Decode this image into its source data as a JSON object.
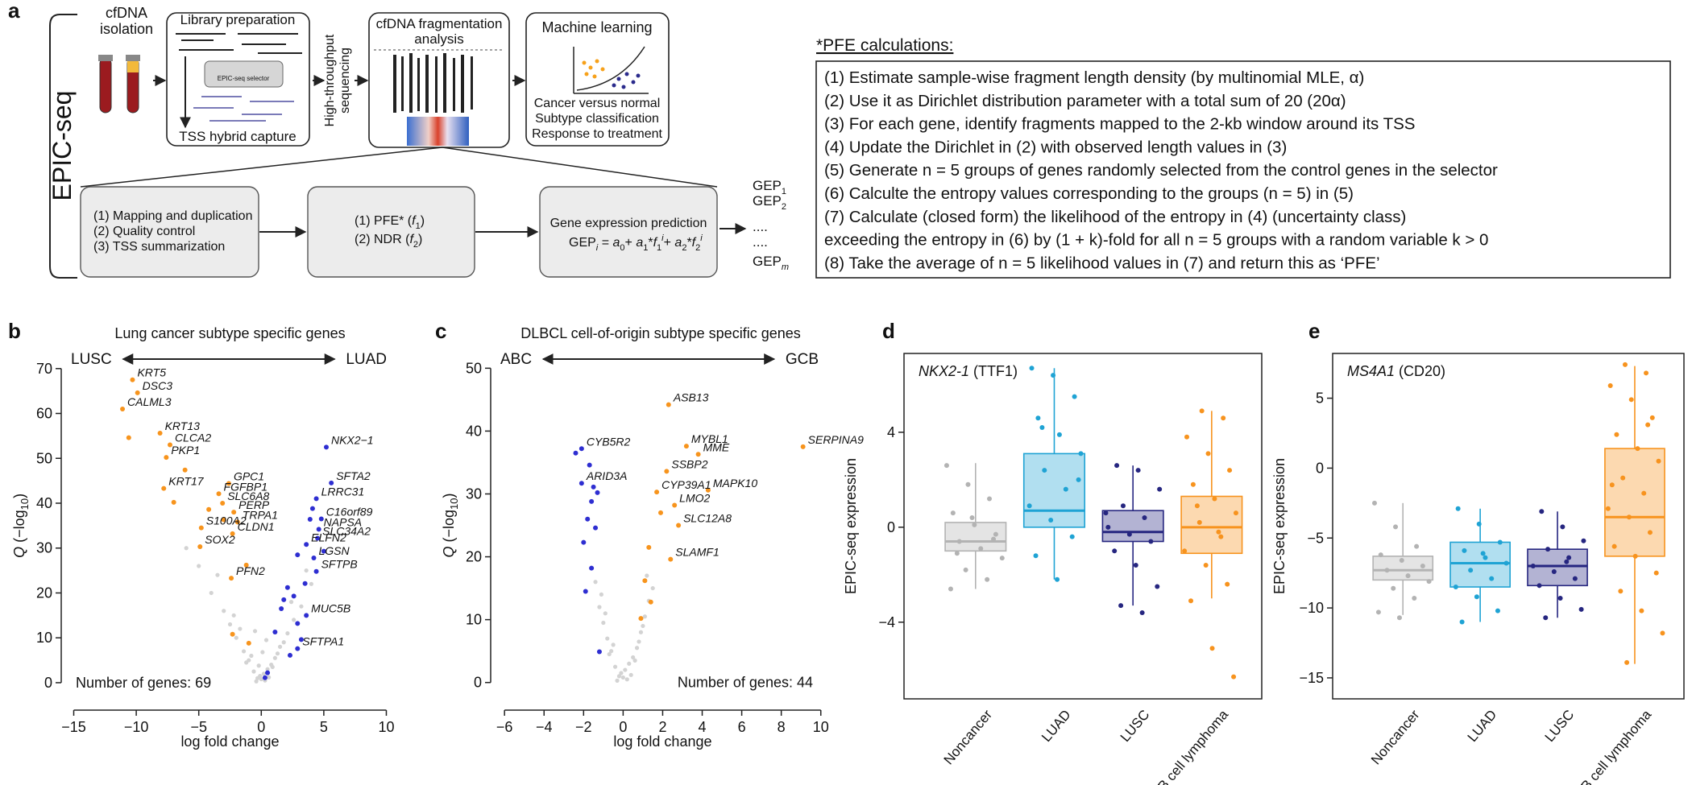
{
  "diagram": {
    "panel_label": "a",
    "side_label": "EPIC-seq",
    "isolation": [
      "cfDNA",
      "isolation"
    ],
    "library": {
      "title": "Library preparation",
      "selector": "EPIC-seq selector",
      "bottom": "TSS hybrid capture"
    },
    "sequencing": [
      "High-throughput",
      "sequencing"
    ],
    "fragmentation": [
      "cfDNA fragmentation",
      "analysis"
    ],
    "ml": {
      "title": "Machine learning",
      "lines": [
        "Cancer versus normal",
        "Subtype classification",
        "Response to treatment"
      ]
    },
    "step1": [
      "(1) Mapping and duplication",
      "(2) Quality control",
      "(3) TSS summarization"
    ],
    "step2": [
      [
        "(1) PFE* (",
        "f",
        "1",
        ")"
      ],
      [
        "(2) NDR (",
        "f",
        "2",
        ")"
      ]
    ],
    "step3": {
      "title": "Gene expression prediction",
      "formula": [
        "GEP",
        "i",
        " = ",
        "a",
        "0",
        "+ ",
        "a",
        "1",
        "*",
        "f",
        "1",
        "i",
        "+ ",
        "a",
        "2",
        "*",
        "f",
        "2",
        "i"
      ]
    },
    "outputs": [
      [
        "GEP",
        "1"
      ],
      [
        "GEP",
        "2"
      ],
      "....",
      "....",
      [
        "GEP",
        "m"
      ]
    ]
  },
  "pfe": {
    "title": "*PFE calculations:",
    "lines": [
      "(1) Estimate sample-wise fragment length density (by multinomial MLE, α)",
      "(2) Use it as Dirichlet distribution parameter with a total sum of 20 (20α)",
      "(3) For each gene, identify fragments mapped to the 2-kb window around its TSS",
      "(4) Update the Dirichlet in (2) with observed length values in (3)",
      "(5) Generate n = 5 groups of genes randomly selected from the control genes in the selector",
      "(6) Calculte the entropy values corresponding to the groups (n = 5) in (5)",
      "(7) Calculate (closed form) the likelihood of the entropy in (4) (uncertainty class)",
      "exceeding the entropy in (6) by (1 + k)-fold for all n = 5 groups with a random variable k > 0",
      "(8) Take the average of n = 5 likelihood values in (7) and return this as ‘PFE’"
    ]
  },
  "chart_data": [
    {
      "type": "scatter",
      "panel_label": "b",
      "title": "Lung cancer subtype specific genes",
      "left_label": "LUSC",
      "right_label": "LUAD",
      "left_color": "#f7941d",
      "right_color": "#92278f",
      "xlabel": "log fold change",
      "ylabel": [
        "Q",
        " (−log",
        "10",
        ")"
      ],
      "annotation": "Number of genes: 69",
      "xlim": [
        -16,
        11
      ],
      "ylim": [
        -3.6,
        70.5
      ],
      "xticks": [
        {
          "value": -15,
          "label": "−15"
        },
        {
          "value": -10,
          "label": "−10"
        },
        {
          "value": -5,
          "label": "−5"
        },
        0,
        5,
        10
      ],
      "yticks": [
        0,
        10,
        20,
        30,
        40,
        50,
        60,
        70
      ],
      "series": [
        {
          "color": "#d3d3d3",
          "x": [
            -0.3,
            0.2,
            0.5,
            -0.6,
            0.8,
            -1,
            1.1,
            -1.4,
            1.5,
            -2,
            2.1,
            -2.5,
            2.6,
            -3,
            3.2,
            -0.1,
            0.3,
            -0.8,
            0.9,
            -1.7,
            1.8,
            -4,
            4,
            -0.4,
            0.6,
            -1.2,
            1.3,
            -2.2,
            2.4,
            -5,
            0,
            -0.2,
            0.1,
            -3.5,
            3.6,
            -6,
            0.4,
            -0.5
          ],
          "values": [
            1,
            2,
            3,
            2.5,
            4,
            5,
            5.5,
            7,
            8,
            10,
            11,
            13,
            14,
            16,
            17,
            1.5,
            0.5,
            6,
            3.5,
            12,
            9,
            20,
            22,
            0.3,
            1.2,
            4.5,
            6.5,
            15,
            18,
            26,
            0.8,
            3.8,
            6.8,
            24,
            25,
            30,
            9.5,
            11.5
          ]
        },
        {
          "color": "#f7941d",
          "x": [
            -10.3,
            -9.9,
            -11.1,
            -8.1,
            -7.3,
            -7.6,
            -2.6,
            -3.4,
            -3.1,
            -7.8,
            -2.2,
            -1.9,
            -4.8,
            -2.3,
            -4.9,
            -2.4,
            -10.6,
            -6.1,
            -7,
            -4.2,
            -1.2,
            -2.3,
            -1,
            -3
          ],
          "values": [
            67.5,
            64.6,
            61,
            55.6,
            53,
            50.2,
            44.4,
            42.1,
            40,
            43.3,
            38,
            35.8,
            34.5,
            33.2,
            30.3,
            23.3,
            54.6,
            47.4,
            40.2,
            38.6,
            26.2,
            10.8,
            8.8,
            36.3
          ],
          "labels": [
            "KRT5",
            "DSC3",
            "CALML3",
            "KRT13",
            "CLCA2",
            "PKP1",
            "GPC1",
            "FGFBP1",
            "SLC6A8",
            "KRT17",
            "PERP",
            "TRPA1",
            "S100A2",
            "CLDN1",
            "SOX2",
            "PFN2",
            null,
            null,
            null,
            null,
            null,
            null,
            null,
            null
          ]
        },
        {
          "color": "#2e2ed1",
          "x": [
            5.2,
            5.6,
            4.4,
            4.8,
            4.6,
            4.5,
            3.6,
            4.2,
            4.4,
            3.6,
            2.9,
            4.1,
            3.9,
            5,
            2.9,
            3.5,
            2.1,
            2.6,
            1.6,
            2.9,
            1.1,
            3.2,
            2.3,
            0.5,
            0.3,
            1.8
          ],
          "values": [
            52.5,
            44.5,
            41,
            36.5,
            34.2,
            32.2,
            30.8,
            27.8,
            24.8,
            15,
            7.6,
            38.8,
            36.4,
            29.3,
            28.5,
            22.1,
            21.2,
            19.3,
            16.5,
            13.2,
            11.3,
            9.6,
            6.1,
            2.2,
            1.1,
            18.5
          ],
          "labels": [
            "NKX2−1",
            "SFTA2",
            "LRRC31",
            "C16orf89",
            "NAPSA",
            "SLC34A2",
            "ELFN2",
            "LGSN",
            "SFTPB",
            "MUC5B",
            "SFTPA1",
            null,
            null,
            null,
            null,
            null,
            null,
            null,
            null,
            null,
            null,
            null,
            null,
            null,
            null,
            null
          ]
        }
      ]
    },
    {
      "type": "scatter",
      "panel_label": "c",
      "title": "DLBCL cell-of-origin subtype specific genes",
      "left_label": "ABC",
      "right_label": "GCB",
      "left_color": "#2e3192",
      "right_color": "#f7941d",
      "xlabel": "log fold change",
      "ylabel": [
        "Q",
        " (−log",
        "10",
        ")"
      ],
      "annotation": "Number of genes: 44",
      "xlim": [
        -6.7,
        10.5
      ],
      "ylim": [
        -2.6,
        50.3
      ],
      "xticks": [
        {
          "value": -6,
          "label": "−6"
        },
        {
          "value": -4,
          "label": "−4"
        },
        {
          "value": -2,
          "label": "−2"
        },
        0,
        2,
        4,
        6,
        8,
        10
      ],
      "yticks": [
        0,
        10,
        20,
        30,
        40,
        50
      ],
      "series": [
        {
          "color": "#d3d3d3",
          "x": [
            -0.2,
            0.1,
            0.3,
            -0.4,
            0.5,
            -0.6,
            0.7,
            -0.8,
            0.9,
            -1,
            1.1,
            -1.2,
            1.3,
            -0.1,
            0.2,
            -0.5,
            0.6,
            -0.9,
            1,
            -1.4,
            1.5,
            -0.3,
            0.4,
            -0.7,
            0.8,
            0,
            -1.1,
            1.2
          ],
          "values": [
            1,
            2,
            3,
            2.5,
            4,
            5,
            5.5,
            7,
            8,
            9.5,
            10.5,
            12,
            13,
            1.5,
            0.5,
            6,
            3.5,
            11,
            9,
            16,
            15,
            0.3,
            1.2,
            4.5,
            6.5,
            0.8,
            14,
            17
          ]
        },
        {
          "color": "#f7941d",
          "x": [
            2.3,
            3.2,
            3.8,
            9.1,
            2.2,
            1.7,
            4.3,
            2.6,
            2.8,
            2.4,
            1.3,
            1.1,
            1.4,
            0.9,
            1.9
          ],
          "values": [
            44.2,
            37.6,
            36.3,
            37.5,
            33.6,
            30.3,
            30.6,
            28.2,
            25,
            19.6,
            21.5,
            16.2,
            12.8,
            10.2,
            27
          ],
          "labels": [
            "ASB13",
            "MYBL1",
            "MME",
            "SERPINA9",
            "SSBP2",
            "CYP39A1",
            "MAPK10",
            "LMO2",
            "SLC12A8",
            "SLAMF1",
            null,
            null,
            null,
            null,
            null
          ]
        },
        {
          "color": "#2e2ed1",
          "x": [
            -2.1,
            -2.1,
            -1.7,
            -1.5,
            -1.3,
            -1.6,
            -1.8,
            -2,
            -1.6,
            -1.9,
            -1.2,
            -1.4,
            -2.4
          ],
          "values": [
            37.2,
            31.7,
            34.6,
            31.1,
            30.2,
            28.8,
            26,
            22.3,
            18.2,
            14.5,
            4.9,
            24.6,
            36.5
          ],
          "labels": [
            "CYB5R2",
            "ARID3A",
            null,
            null,
            null,
            null,
            null,
            null,
            null,
            null,
            null,
            null,
            null
          ]
        }
      ]
    },
    {
      "type": "box",
      "panel_label": "d",
      "title": [
        "NKX2-1",
        " (TTF1)"
      ],
      "ylabel": "EPIC-seq expression",
      "categories": [
        "Noncancer",
        "LUAD",
        "LUSC",
        "B cell lymphoma"
      ],
      "colors": [
        "#b3b3b3",
        "#1fa3d4",
        "#262680",
        "#f7931e"
      ],
      "ylim": [
        -7.23,
        7.32
      ],
      "yticks": [
        {
          "value": -4,
          "label": "−4"
        },
        0,
        4
      ],
      "boxes": [
        {
          "low": -2.6,
          "q1": -1,
          "median": -0.6,
          "q3": 0.2,
          "high": 2.7
        },
        {
          "low": -2.2,
          "q1": 0,
          "median": 0.7,
          "q3": 3.1,
          "high": 6.7
        },
        {
          "low": -3.3,
          "q1": -0.6,
          "median": -0.2,
          "q3": 0.7,
          "high": 2.6
        },
        {
          "low": -3,
          "q1": -1.1,
          "median": 0,
          "q3": 1.3,
          "high": 4.9
        }
      ],
      "points": [
        [
          2.6,
          1.8,
          1.2,
          0.6,
          0.1,
          -0.3,
          -0.6,
          -0.9,
          -1.3,
          -1.8,
          -2.2,
          -2.6,
          0.4,
          -0.5,
          -1.1
        ],
        [
          6.7,
          6.4,
          5.5,
          4.6,
          3.9,
          3.1,
          2.4,
          1.6,
          0.9,
          0.3,
          -0.4,
          -1.2,
          -2.2,
          2,
          4.2
        ],
        [
          2.6,
          2.4,
          1.6,
          0.9,
          0.4,
          0,
          -0.3,
          -0.6,
          -1,
          -1.6,
          -2.5,
          -3.3,
          -3.6,
          0.6
        ],
        [
          4.9,
          4.6,
          3.8,
          3.1,
          2.4,
          1.8,
          1.2,
          0.6,
          0.2,
          -0.4,
          -1,
          -1.6,
          -2.4,
          -3.1,
          -5.1,
          -6.3,
          0.9,
          -0.2
        ]
      ]
    },
    {
      "type": "box",
      "panel_label": "e",
      "title": [
        "MS4A1",
        " (CD20)"
      ],
      "ylabel": "EPIC-seq expression",
      "categories": [
        "Noncancer",
        "LUAD",
        "LUSC",
        "B cell lymphoma"
      ],
      "colors": [
        "#b3b3b3",
        "#1fa3d4",
        "#262680",
        "#f7931e"
      ],
      "ylim": [
        -16.5,
        8.2
      ],
      "yticks": [
        {
          "value": -15,
          "label": "−15"
        },
        {
          "value": -10,
          "label": "−10"
        },
        {
          "value": -5,
          "label": "−5"
        },
        0,
        5
      ],
      "boxes": [
        {
          "low": -10.5,
          "q1": -8,
          "median": -7.3,
          "q3": -6.3,
          "high": -2.5
        },
        {
          "low": -11,
          "q1": -8.5,
          "median": -6.8,
          "q3": -5.3,
          "high": -2.9
        },
        {
          "low": -10.7,
          "q1": -8.4,
          "median": -7,
          "q3": -5.8,
          "high": -3.1
        },
        {
          "low": -14,
          "q1": -6.3,
          "median": -3.5,
          "q3": 1.4,
          "high": 7.3
        }
      ],
      "points": [
        [
          -2.5,
          -4.2,
          -5.6,
          -6.2,
          -6.6,
          -7,
          -7.3,
          -7.7,
          -8.1,
          -8.6,
          -9.3,
          -10.3,
          -10.7
        ],
        [
          -2.9,
          -4,
          -5.3,
          -5.9,
          -6.4,
          -6.8,
          -7.3,
          -7.9,
          -8.5,
          -9.2,
          -10.2,
          -11,
          -6.1
        ],
        [
          -3.1,
          -4.2,
          -5.2,
          -5.8,
          -6.4,
          -7,
          -7.4,
          -7.9,
          -8.4,
          -9.3,
          -10.1,
          -10.7,
          -6.7
        ],
        [
          7.4,
          6.8,
          5.9,
          4.9,
          3.6,
          2.4,
          1.4,
          0.5,
          -0.7,
          -1.8,
          -2.9,
          -3.5,
          -4.6,
          -5.6,
          -6.3,
          -7.5,
          -8.8,
          -10.2,
          -11.8,
          -13.9,
          3.1,
          -1.2
        ]
      ]
    }
  ]
}
